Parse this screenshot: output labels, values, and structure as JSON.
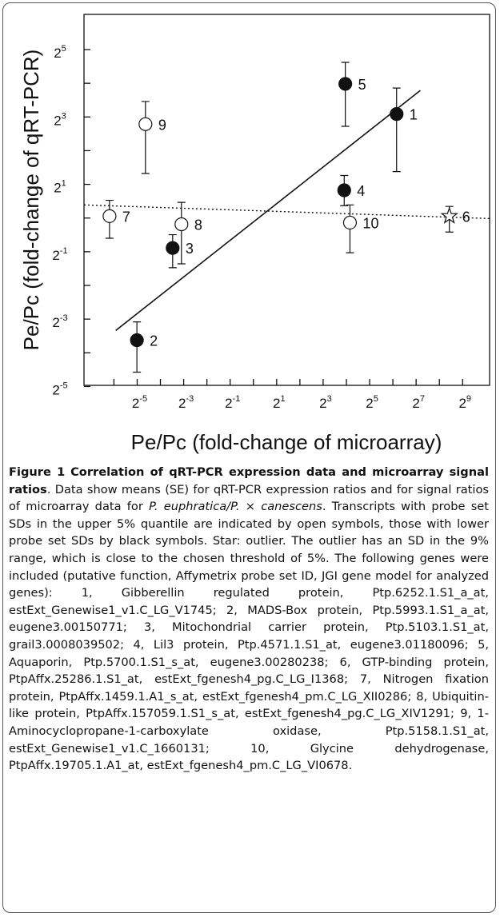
{
  "chart_data": {
    "type": "scatter",
    "xlabel": "Pe/Pc (fold-change of microarray)",
    "ylabel": "Pe/Pc (fold-change of qRT-PCR)",
    "log_base": 2,
    "xlim": [
      0.0064,
      1145
    ],
    "ylim": [
      0.032,
      66
    ],
    "xticks": [
      {
        "value": 0.03125,
        "base": "2",
        "exponent": "-5"
      },
      {
        "value": 0.125,
        "base": "2",
        "exponent": "-3"
      },
      {
        "value": 0.5,
        "base": "2",
        "exponent": "-1"
      },
      {
        "value": 2,
        "base": "2",
        "exponent": "1"
      },
      {
        "value": 8,
        "base": "2",
        "exponent": "3"
      },
      {
        "value": 32,
        "base": "2",
        "exponent": "5"
      },
      {
        "value": 128,
        "base": "2",
        "exponent": "7"
      },
      {
        "value": 512,
        "base": "2",
        "exponent": "9"
      }
    ],
    "xminor_ticks": [
      0.015625,
      0.0625,
      0.25,
      1,
      4,
      16,
      64,
      256
    ],
    "yticks": [
      {
        "value": 0.03125,
        "base": "2",
        "exponent": "-5"
      },
      {
        "value": 0.125,
        "base": "2",
        "exponent": "-3"
      },
      {
        "value": 0.5,
        "base": "2",
        "exponent": "-1"
      },
      {
        "value": 2,
        "base": "2",
        "exponent": "1"
      },
      {
        "value": 8,
        "base": "2",
        "exponent": "3"
      },
      {
        "value": 32,
        "base": "2",
        "exponent": "5"
      }
    ],
    "yminor_ticks": [
      0.0625,
      0.25,
      1,
      4,
      16
    ],
    "points": {
      "labels": [
        "1",
        "2",
        "3",
        "4",
        "5",
        "6",
        "7",
        "8",
        "9",
        "10"
      ],
      "markers": [
        "filled",
        "filled",
        "filled",
        "filled",
        "filled",
        "star",
        "open",
        "open",
        "open",
        "open"
      ],
      "x": [
        71.5,
        0.031,
        0.09,
        15,
        15.5,
        345,
        0.0137,
        0.117,
        0.04,
        17.8
      ],
      "values": [
        8.5,
        0.081,
        0.54,
        1.77,
        15.8,
        1.04,
        1.04,
        0.88,
        6.9,
        0.91
      ],
      "y_high": [
        14.5,
        0.118,
        0.71,
        2.4,
        24.6,
        1.27,
        1.44,
        1.38,
        11,
        1.31
      ],
      "y_low": [
        2.6,
        0.042,
        0.36,
        1.29,
        6.6,
        0.75,
        0.66,
        0.39,
        2.5,
        0.49
      ]
    },
    "fit_lines": [
      {
        "style": "solid",
        "x": [
          0.0165,
          145
        ],
        "values": [
          0.099,
          13.8
        ]
      },
      {
        "style": "dotted",
        "x": [
          0.0064,
          1145
        ],
        "values": [
          1.31,
          0.99
        ]
      }
    ]
  },
  "caption": {
    "label": "Figure 1",
    "title": "Correlation of qRT-PCR expression data and microarray signal ratios",
    "segments": [
      {
        "text": ". Data show means (SE) for qRT-PCR expression ratios and for signal ratios of microarray data for ",
        "italic": false
      },
      {
        "text": "P. euphratica/P.",
        "italic": true
      },
      {
        "text": " × ",
        "italic": false
      },
      {
        "text": "canescens",
        "italic": true
      },
      {
        "text": ". Transcripts with probe set SDs in the upper 5% quantile are indicated by open symbols, those with lower probe set SDs by black symbols. Star: outlier. The outlier has an SD in the 9% range, which is close to the chosen threshold of 5%. The following genes were included (putative function, Affymetrix probe set ID, JGI gene model for analyzed genes): 1, Gibberellin regulated protein, Ptp.6252.1.S1_a_at, estExt_Genewise1_v1.C_LG_V1745; 2, MADS-Box protein, Ptp.5993.1.S1_a_at, eugene3.00150771; 3, Mitochondrial carrier protein, Ptp.5103.1.S1_at, grail3.0008039502; 4, Lil3 protein, Ptp.4571.1.S1_at, eugene3.01180096; 5, Aquaporin, Ptp.5700.1.S1_s_at, eugene3.00280238; 6, GTP-binding protein, PtpAffx.25286.1.S1_at, estExt_fgenesh4_pg.C_LG_I1368; 7, Nitrogen fixation protein, PtpAffx.1459.1.A1_s_at, estExt_fgenesh4_pm.C_LG_XII0286; 8, Ubiquitin-like protein, PtpAffx.157059.1.S1_s_at, estExt_fgenesh4_pg.C_LG_XIV1291; 9, 1-Aminocyclopropane-1-carboxylate oxidase, Ptp.5158.1.S1_at, estExt_Genewise1_v1.C_1660131; 10, Glycine dehydrogenase, PtpAffx.19705.1.A1_at, estExt_fgenesh4_pm.C_LG_VI0678.",
        "italic": false
      }
    ]
  }
}
